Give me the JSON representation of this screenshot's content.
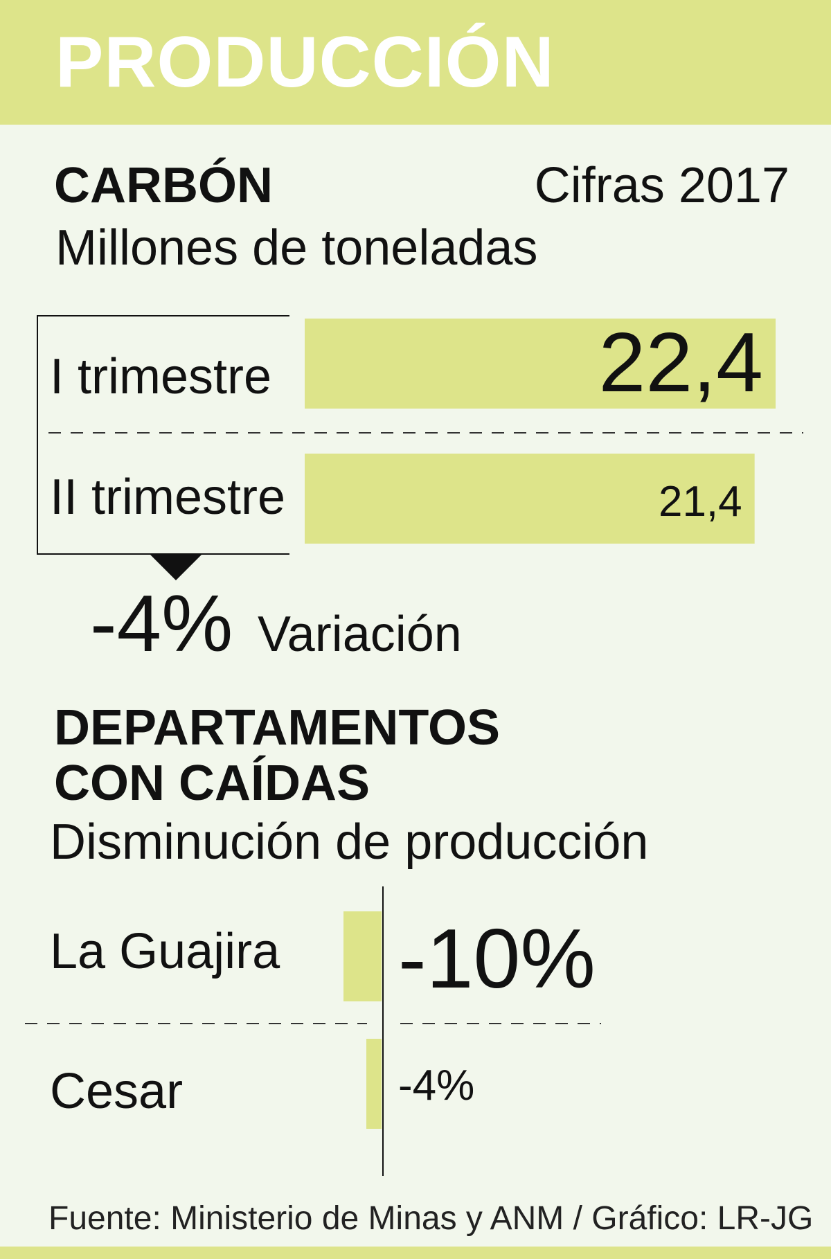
{
  "title": "PRODUCCIÓN",
  "colors": {
    "band": "#dde48a",
    "background": "#f2f7ec",
    "text": "#111111"
  },
  "chart_data": [
    {
      "type": "bar",
      "title": "CARBÓN",
      "subtitle": "Millones de toneladas",
      "note": "Cifras 2017",
      "categories": [
        "I trimestre",
        "II trimestre"
      ],
      "values": [
        22.4,
        21.4
      ],
      "value_labels": [
        "22,4",
        "21,4"
      ],
      "variation": {
        "value": "-4%",
        "label": "Variación"
      }
    },
    {
      "type": "bar",
      "title_line1": "DEPARTAMENTOS",
      "title_line2": "CON CAÍDAS",
      "subtitle": "Disminución de producción",
      "categories": [
        "La Guajira",
        "Cesar"
      ],
      "values": [
        -10,
        -4
      ],
      "value_labels": [
        "-10%",
        "-4%"
      ]
    }
  ],
  "footer": "Fuente: Ministerio de Minas y ANM / Gráfico: LR-JG"
}
